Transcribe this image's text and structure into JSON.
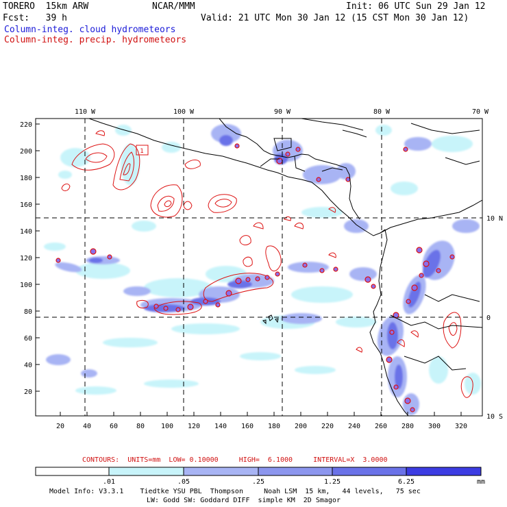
{
  "header": {
    "model": "TORERO  15km ARW",
    "org": "NCAR/MMM",
    "init": "Init: 06 UTC Sun 29 Jan 12",
    "fcst": "Fcst:   39 h",
    "valid": "Valid: 21 UTC Mon 30 Jan 12 (15 CST Mon 30 Jan 12)",
    "field_cloud": "Column-integ. cloud hydrometeors",
    "field_precip": "Column-integ. precip. hydrometeors"
  },
  "map": {
    "lon_labels": [
      "110 W",
      "100 W",
      "90 W",
      "80 W",
      "70 W"
    ],
    "lat_labels": [
      "10 N",
      "0",
      "10 S"
    ],
    "y_ticks": [
      "220",
      "200",
      "180",
      "160",
      "140",
      "120",
      "100",
      "80",
      "60",
      "40",
      "20"
    ],
    "x_ticks": [
      "20",
      "40",
      "60",
      "80",
      "100",
      "120",
      "140",
      "160",
      "180",
      "200",
      "220",
      "240",
      "260",
      "280",
      "300",
      "320"
    ],
    "contour_label": "1",
    "colors": {
      "cloud_light": "#c8f4fa",
      "cloud_mid": "#a8b4f4",
      "cloud_dark": "#6a72e8",
      "precip_contour": "#dd1111",
      "grid": "#000000",
      "coast": "#000000"
    }
  },
  "footer": {
    "contours_text": "CONTOURS:  UNITS=mm  LOW= 0.10000     HIGH=  6.1000     INTERVAL=X  3.0000",
    "colorbar_labels": [
      ".01",
      ".05",
      ".25",
      "1.25",
      "6.25"
    ],
    "colorbar_unit": "mm",
    "colorbar_colors": [
      "#ffffff",
      "#c8f4fa",
      "#a8b4f4",
      "#8c96ee",
      "#6a72e8",
      "#4646e0",
      "#1010e0"
    ],
    "model_info_1": "Model Info: V3.3.1    Tiedtke YSU PBL  Thompson     Noah LSM  15 km,   44 levels,   75 sec",
    "model_info_2": "LW: Godd SW: Goddard DIFF  simple KM  2D Smagor"
  }
}
